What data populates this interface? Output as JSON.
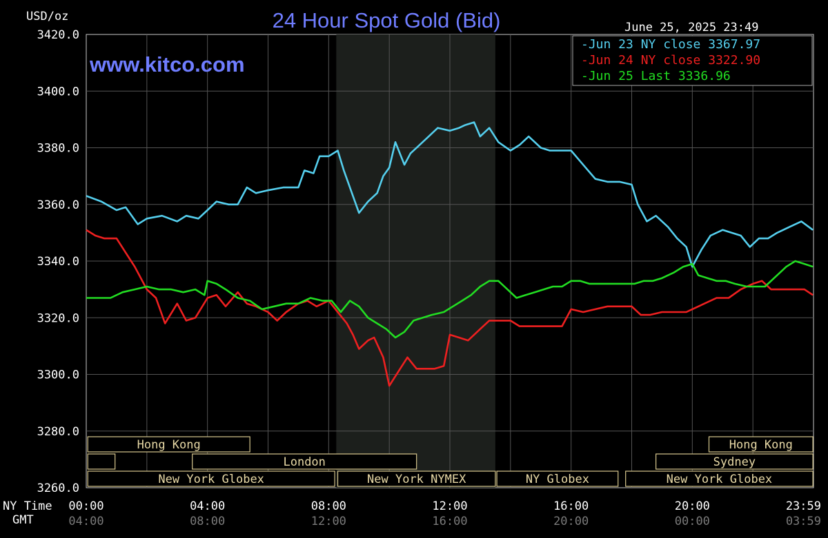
{
  "chart_data": {
    "type": "line",
    "title": "24 Hour Spot Gold (Bid)",
    "unit_label": "USD/oz",
    "timestamp": "June 25, 2025 23:49",
    "watermark": "www.kitco.com",
    "ylim": [
      3260,
      3420
    ],
    "yticks": [
      "3420.0",
      "3400.0",
      "3380.0",
      "3360.0",
      "3340.0",
      "3320.0",
      "3300.0",
      "3280.0",
      "3260.0"
    ],
    "x_row_label_ny": "NY Time",
    "x_row_label_gmt": "GMT",
    "xticks_ny": [
      "00:00",
      "04:00",
      "08:00",
      "12:00",
      "16:00",
      "20:00",
      "23:59"
    ],
    "xticks_gmt": [
      "04:00",
      "08:00",
      "12:00",
      "16:00",
      "20:00",
      "00:00",
      "03:59"
    ],
    "grid": true,
    "legend_position": "top-right",
    "series": [
      {
        "name": "Jun 23 NY close",
        "legend_value": "3367.97",
        "color": "#55cfee",
        "points": [
          [
            0,
            3363
          ],
          [
            0.5,
            3361
          ],
          [
            1,
            3358
          ],
          [
            1.3,
            3359
          ],
          [
            1.7,
            3353
          ],
          [
            2,
            3355
          ],
          [
            2.5,
            3356
          ],
          [
            3,
            3354
          ],
          [
            3.3,
            3356
          ],
          [
            3.7,
            3355
          ],
          [
            4,
            3358
          ],
          [
            4.3,
            3361
          ],
          [
            4.7,
            3360
          ],
          [
            5,
            3360
          ],
          [
            5.3,
            3366
          ],
          [
            5.6,
            3364
          ],
          [
            6,
            3365
          ],
          [
            6.5,
            3366
          ],
          [
            7,
            3366
          ],
          [
            7.2,
            3372
          ],
          [
            7.5,
            3371
          ],
          [
            7.7,
            3377
          ],
          [
            8,
            3377
          ],
          [
            8.3,
            3379
          ],
          [
            8.5,
            3372
          ],
          [
            8.8,
            3363
          ],
          [
            9,
            3357
          ],
          [
            9.3,
            3361
          ],
          [
            9.6,
            3364
          ],
          [
            9.8,
            3370
          ],
          [
            10,
            3373
          ],
          [
            10.2,
            3382
          ],
          [
            10.5,
            3374
          ],
          [
            10.7,
            3378
          ],
          [
            11,
            3381
          ],
          [
            11.3,
            3384
          ],
          [
            11.6,
            3387
          ],
          [
            12,
            3386
          ],
          [
            12.3,
            3387
          ],
          [
            12.5,
            3388
          ],
          [
            12.8,
            3389
          ],
          [
            13,
            3384
          ],
          [
            13.3,
            3387
          ],
          [
            13.6,
            3382
          ],
          [
            14,
            3379
          ],
          [
            14.3,
            3381
          ],
          [
            14.6,
            3384
          ],
          [
            15,
            3380
          ],
          [
            15.3,
            3379
          ],
          [
            15.7,
            3379
          ],
          [
            16,
            3379
          ],
          [
            16.4,
            3374
          ],
          [
            16.8,
            3369
          ],
          [
            17.2,
            3368
          ],
          [
            17.6,
            3368
          ],
          [
            18,
            3367
          ],
          [
            18.2,
            3360
          ],
          [
            18.5,
            3354
          ],
          [
            18.8,
            3356
          ],
          [
            19.2,
            3352
          ],
          [
            19.5,
            3348
          ],
          [
            19.8,
            3345
          ],
          [
            20,
            3338
          ],
          [
            20.3,
            3344
          ],
          [
            20.6,
            3349
          ],
          [
            21,
            3351
          ],
          [
            21.3,
            3350
          ],
          [
            21.6,
            3349
          ],
          [
            21.9,
            3345
          ],
          [
            22.2,
            3348
          ],
          [
            22.5,
            3348
          ],
          [
            22.8,
            3350
          ],
          [
            23.2,
            3352
          ],
          [
            23.6,
            3354
          ],
          [
            23.98,
            3351
          ]
        ]
      },
      {
        "name": "Jun 24 NY close",
        "legend_value": "3322.90",
        "color": "#ee2020",
        "points": [
          [
            0,
            3351
          ],
          [
            0.3,
            3349
          ],
          [
            0.6,
            3348
          ],
          [
            1,
            3348
          ],
          [
            1.3,
            3343
          ],
          [
            1.6,
            3338
          ],
          [
            2,
            3330
          ],
          [
            2.3,
            3327
          ],
          [
            2.6,
            3318
          ],
          [
            3,
            3325
          ],
          [
            3.3,
            3319
          ],
          [
            3.6,
            3320
          ],
          [
            4,
            3327
          ],
          [
            4.3,
            3328
          ],
          [
            4.6,
            3324
          ],
          [
            5,
            3329
          ],
          [
            5.3,
            3325
          ],
          [
            5.6,
            3324
          ],
          [
            6,
            3322
          ],
          [
            6.3,
            3319
          ],
          [
            6.6,
            3322
          ],
          [
            7,
            3325
          ],
          [
            7.3,
            3326
          ],
          [
            7.6,
            3324
          ],
          [
            8,
            3326
          ],
          [
            8.3,
            3322
          ],
          [
            8.6,
            3318
          ],
          [
            8.8,
            3314
          ],
          [
            9,
            3309
          ],
          [
            9.3,
            3312
          ],
          [
            9.5,
            3313
          ],
          [
            9.8,
            3306
          ],
          [
            10,
            3296
          ],
          [
            10.3,
            3301
          ],
          [
            10.6,
            3306
          ],
          [
            10.9,
            3302
          ],
          [
            11.2,
            3302
          ],
          [
            11.5,
            3302
          ],
          [
            11.8,
            3303
          ],
          [
            12,
            3314
          ],
          [
            12.3,
            3313
          ],
          [
            12.6,
            3312
          ],
          [
            13,
            3316
          ],
          [
            13.3,
            3319
          ],
          [
            13.6,
            3319
          ],
          [
            14,
            3319
          ],
          [
            14.3,
            3317
          ],
          [
            14.6,
            3317
          ],
          [
            15,
            3317
          ],
          [
            15.4,
            3317
          ],
          [
            15.7,
            3317
          ],
          [
            16,
            3323
          ],
          [
            16.4,
            3322
          ],
          [
            16.8,
            3323
          ],
          [
            17.2,
            3324
          ],
          [
            17.6,
            3324
          ],
          [
            18,
            3324
          ],
          [
            18.3,
            3321
          ],
          [
            18.6,
            3321
          ],
          [
            19,
            3322
          ],
          [
            19.4,
            3322
          ],
          [
            19.8,
            3322
          ],
          [
            20,
            3323
          ],
          [
            20.4,
            3325
          ],
          [
            20.8,
            3327
          ],
          [
            21.2,
            3327
          ],
          [
            21.6,
            3330
          ],
          [
            22,
            3332
          ],
          [
            22.3,
            3333
          ],
          [
            22.6,
            3330
          ],
          [
            23,
            3330
          ],
          [
            23.4,
            3330
          ],
          [
            23.7,
            3330
          ],
          [
            23.98,
            3328
          ]
        ]
      },
      {
        "name": "Jun 25 Last",
        "legend_value": "3336.96",
        "color": "#22dd22",
        "points": [
          [
            0,
            3327
          ],
          [
            0.4,
            3327
          ],
          [
            0.8,
            3327
          ],
          [
            1.2,
            3329
          ],
          [
            1.6,
            3330
          ],
          [
            2,
            3331
          ],
          [
            2.4,
            3330
          ],
          [
            2.8,
            3330
          ],
          [
            3.2,
            3329
          ],
          [
            3.6,
            3330
          ],
          [
            3.9,
            3328
          ],
          [
            4,
            3333
          ],
          [
            4.3,
            3332
          ],
          [
            4.6,
            3330
          ],
          [
            5,
            3327
          ],
          [
            5.4,
            3326
          ],
          [
            5.8,
            3323
          ],
          [
            6.2,
            3324
          ],
          [
            6.6,
            3325
          ],
          [
            7,
            3325
          ],
          [
            7.4,
            3327
          ],
          [
            7.8,
            3326
          ],
          [
            8.1,
            3326
          ],
          [
            8.4,
            3322
          ],
          [
            8.7,
            3326
          ],
          [
            9,
            3324
          ],
          [
            9.3,
            3320
          ],
          [
            9.6,
            3318
          ],
          [
            9.9,
            3316
          ],
          [
            10.2,
            3313
          ],
          [
            10.5,
            3315
          ],
          [
            10.8,
            3319
          ],
          [
            11.1,
            3320
          ],
          [
            11.4,
            3321
          ],
          [
            11.8,
            3322
          ],
          [
            12.1,
            3324
          ],
          [
            12.4,
            3326
          ],
          [
            12.7,
            3328
          ],
          [
            13,
            3331
          ],
          [
            13.3,
            3333
          ],
          [
            13.6,
            3333
          ],
          [
            13.9,
            3330
          ],
          [
            14.2,
            3327
          ],
          [
            14.5,
            3328
          ],
          [
            14.8,
            3329
          ],
          [
            15.1,
            3330
          ],
          [
            15.4,
            3331
          ],
          [
            15.7,
            3331
          ],
          [
            16,
            3333
          ],
          [
            16.3,
            3333
          ],
          [
            16.6,
            3332
          ],
          [
            17,
            3332
          ],
          [
            17.4,
            3332
          ],
          [
            17.8,
            3332
          ],
          [
            18.1,
            3332
          ],
          [
            18.4,
            3333
          ],
          [
            18.7,
            3333
          ],
          [
            19,
            3334
          ],
          [
            19.4,
            3336
          ],
          [
            19.7,
            3338
          ],
          [
            20,
            3339
          ],
          [
            20.2,
            3335
          ],
          [
            20.5,
            3334
          ],
          [
            20.8,
            3333
          ],
          [
            21.1,
            3333
          ],
          [
            21.4,
            3332
          ],
          [
            21.8,
            3331
          ],
          [
            22.1,
            3331
          ],
          [
            22.4,
            3331
          ],
          [
            22.8,
            3335
          ],
          [
            23.1,
            3338
          ],
          [
            23.4,
            3340
          ],
          [
            23.7,
            3339
          ],
          [
            23.98,
            3338
          ]
        ]
      }
    ],
    "shaded_region": [
      8.25,
      13.5
    ],
    "sessions": [
      {
        "label": "Hong Kong",
        "start": 0.05,
        "end": 5.4,
        "row": 0
      },
      {
        "label": "Hong Kong",
        "start": 20.55,
        "end": 23.98,
        "row": 0
      },
      {
        "label": "",
        "start": 0.05,
        "end": 0.95,
        "row": 1
      },
      {
        "label": "London",
        "start": 3.5,
        "end": 10.9,
        "row": 1
      },
      {
        "label": "Sydney",
        "start": 18.8,
        "end": 23.98,
        "row": 1
      },
      {
        "label": "New York Globex",
        "start": 0.05,
        "end": 8.2,
        "row": 2
      },
      {
        "label": "New York NYMEX",
        "start": 8.3,
        "end": 13.5,
        "row": 2
      },
      {
        "label": "NY Globex",
        "start": 13.55,
        "end": 17.55,
        "row": 2
      },
      {
        "label": "New York Globex",
        "start": 17.8,
        "end": 23.98,
        "row": 2
      }
    ]
  }
}
